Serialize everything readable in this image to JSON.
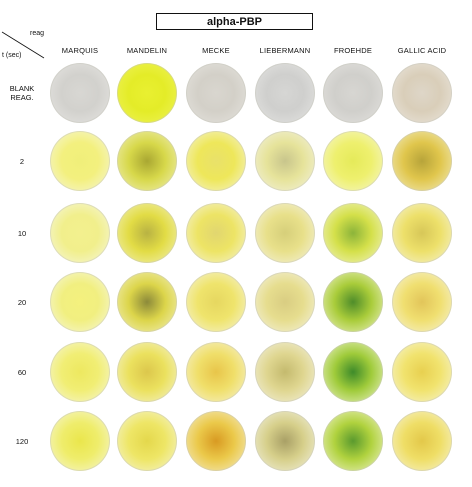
{
  "title": "alpha-PBP",
  "corner": {
    "reag": "reag",
    "time": "t (sec)"
  },
  "columns": [
    "MARQUIS",
    "MANDELIN",
    "MECKE",
    "LIEBERMANN",
    "FROEHDE",
    "GALLIC ACID"
  ],
  "rows": [
    "BLANK\nREAG.",
    "2",
    "10",
    "20",
    "60",
    "120"
  ],
  "wells": [
    [
      {
        "center": "#d8d7d3",
        "mid": "#d2d1cd",
        "edge": "#e6e5e2"
      },
      {
        "center": "#e9f031",
        "mid": "#e4ec28",
        "edge": "#eef35a"
      },
      {
        "center": "#d9d6cf",
        "mid": "#d3d0c8",
        "edge": "#e5e3de"
      },
      {
        "center": "#d6d6d4",
        "mid": "#cfcfcd",
        "edge": "#e4e4e2"
      },
      {
        "center": "#d7d6d2",
        "mid": "#d0cfcb",
        "edge": "#e3e2df"
      },
      {
        "center": "#ded6c8",
        "mid": "#d9ceb9",
        "edge": "#ebe6de"
      }
    ],
    [
      {
        "center": "#f0ef7a",
        "mid": "#f3f07e",
        "edge": "#f6f6d8"
      },
      {
        "center": "#a9a732",
        "mid": "#d7d84a",
        "edge": "#f1f0b8"
      },
      {
        "center": "#e9e16a",
        "mid": "#eee75a",
        "edge": "#f5f3d2"
      },
      {
        "center": "#c8c58c",
        "mid": "#e6e39a",
        "edge": "#f3f2df"
      },
      {
        "center": "#e5ea5a",
        "mid": "#eef06e",
        "edge": "#f6f6cf"
      },
      {
        "center": "#b7a43a",
        "mid": "#e0c64c",
        "edge": "#f2ecbf"
      }
    ],
    [
      {
        "center": "#f3f08e",
        "mid": "#f1ef8c",
        "edge": "#f6f6dc"
      },
      {
        "center": "#b8b243",
        "mid": "#e2dc45",
        "edge": "#f2f1b8"
      },
      {
        "center": "#e1d670",
        "mid": "#ede465",
        "edge": "#f5f3d5"
      },
      {
        "center": "#d6cf7a",
        "mid": "#e8e08a",
        "edge": "#f4f2de"
      },
      {
        "center": "#8cb43a",
        "mid": "#d4e04a",
        "edge": "#f3f4c8"
      },
      {
        "center": "#d7c758",
        "mid": "#ede06a",
        "edge": "#f5f3d4"
      }
    ],
    [
      {
        "center": "#f4f17e",
        "mid": "#f1ef80",
        "edge": "#f6f6da"
      },
      {
        "center": "#8c8a3a",
        "mid": "#dcd54a",
        "edge": "#f3f1bd"
      },
      {
        "center": "#e6d760",
        "mid": "#efe46c",
        "edge": "#f5f3d6"
      },
      {
        "center": "#d9cd82",
        "mid": "#e6dd8e",
        "edge": "#f4f2df"
      },
      {
        "center": "#4f8d2a",
        "mid": "#a9cc3a",
        "edge": "#eff3c5"
      },
      {
        "center": "#e2c55a",
        "mid": "#f0df70",
        "edge": "#f6f3d6"
      }
    ],
    [
      {
        "center": "#ede860",
        "mid": "#f1ee74",
        "edge": "#f6f6d6"
      },
      {
        "center": "#dcc74c",
        "mid": "#ebe15e",
        "edge": "#f4f3cf"
      },
      {
        "center": "#e8c54a",
        "mid": "#f0df6a",
        "edge": "#f5f2d2"
      },
      {
        "center": "#c4ba6e",
        "mid": "#dfd690",
        "edge": "#f3f1de"
      },
      {
        "center": "#3e8b2a",
        "mid": "#9fcb3a",
        "edge": "#eef3c8"
      },
      {
        "center": "#e8d050",
        "mid": "#f1e36e",
        "edge": "#f6f4d4"
      }
    ],
    [
      {
        "center": "#eae64c",
        "mid": "#efed6c",
        "edge": "#f6f6d4"
      },
      {
        "center": "#e4d84c",
        "mid": "#eee666",
        "edge": "#f5f4d2"
      },
      {
        "center": "#d89a22",
        "mid": "#ebc94a",
        "edge": "#f4edc8"
      },
      {
        "center": "#a9a066",
        "mid": "#d6cf8a",
        "edge": "#f2f1df"
      },
      {
        "center": "#5a9a2e",
        "mid": "#b0d23e",
        "edge": "#f0f3c9"
      },
      {
        "center": "#e3c84a",
        "mid": "#efde66",
        "edge": "#f6f3d2"
      }
    ]
  ]
}
